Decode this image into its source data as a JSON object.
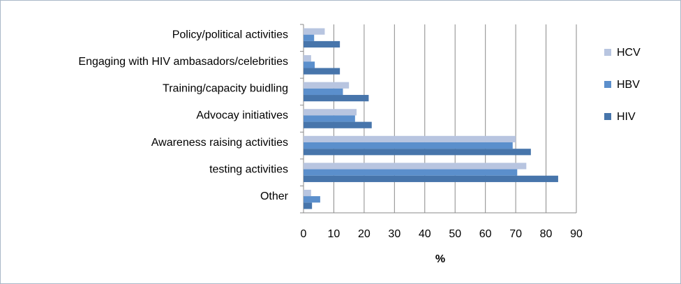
{
  "chart_data": {
    "type": "bar",
    "orientation": "horizontal",
    "categories": [
      "Policy/political activities",
      "Engaging with HIV ambasadors/celebrities",
      "Training/capacity buidling",
      "Advocay initiatives",
      "Awareness raising activities",
      "testing activities",
      "Other"
    ],
    "series": [
      {
        "name": "HCV",
        "color": "#b8c5e0",
        "values": [
          7,
          2.5,
          15,
          17.5,
          70,
          73.5,
          2.5
        ]
      },
      {
        "name": "HBV",
        "color": "#5b8fcc",
        "values": [
          3.5,
          3.7,
          13,
          17,
          69,
          70.5,
          5.5
        ]
      },
      {
        "name": "HIV",
        "color": "#4775ab",
        "values": [
          12,
          12,
          21.5,
          22.5,
          75,
          84,
          2.8
        ]
      }
    ],
    "xlabel": "%",
    "xlim": [
      0,
      90
    ],
    "xticks": [
      0,
      10,
      20,
      30,
      40,
      50,
      60,
      70,
      80,
      90
    ],
    "grid": true,
    "legend": "right"
  }
}
